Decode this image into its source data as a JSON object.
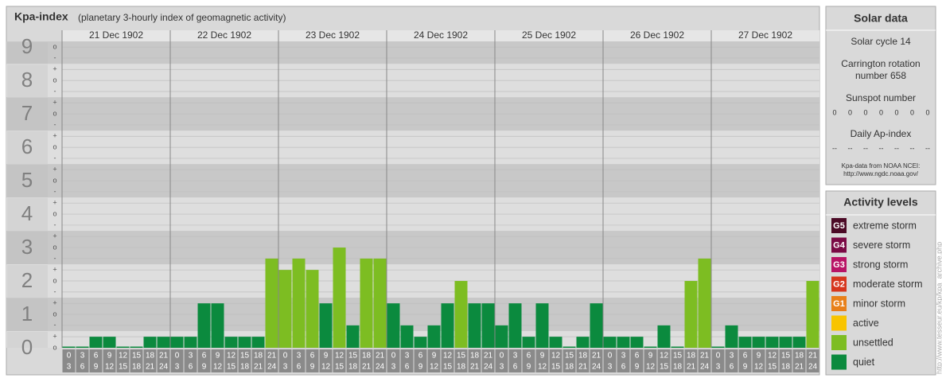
{
  "chart_data": {
    "type": "bar",
    "title": "Kpa-index",
    "subtitle": "(planetary 3-hourly index of geomagnetic activity)",
    "ylim": [
      0,
      9.17
    ],
    "yticks": [
      0,
      1,
      2,
      3,
      4,
      5,
      6,
      7,
      8,
      9
    ],
    "minor_yticks": [
      {
        "value": 0,
        "label": "o"
      },
      {
        "value": 0.33,
        "label": "+"
      },
      {
        "value": 0.67,
        "label": "-"
      },
      {
        "value": 1,
        "label": "o"
      },
      {
        "value": 1.33,
        "label": "+"
      },
      {
        "value": 1.67,
        "label": "-"
      },
      {
        "value": 2,
        "label": "o"
      },
      {
        "value": 2.33,
        "label": "+"
      },
      {
        "value": 2.67,
        "label": "-"
      },
      {
        "value": 3,
        "label": "o"
      },
      {
        "value": 3.33,
        "label": "+"
      },
      {
        "value": 3.67,
        "label": "-"
      },
      {
        "value": 4,
        "label": "o"
      },
      {
        "value": 4.33,
        "label": "+"
      },
      {
        "value": 4.67,
        "label": "-"
      },
      {
        "value": 5,
        "label": "o"
      },
      {
        "value": 5.33,
        "label": "+"
      },
      {
        "value": 5.67,
        "label": "-"
      },
      {
        "value": 6,
        "label": "o"
      },
      {
        "value": 6.33,
        "label": "+"
      },
      {
        "value": 6.67,
        "label": "-"
      },
      {
        "value": 7,
        "label": "o"
      },
      {
        "value": 7.33,
        "label": "+"
      },
      {
        "value": 7.67,
        "label": "-"
      },
      {
        "value": 8,
        "label": "o"
      },
      {
        "value": 8.33,
        "label": "+"
      },
      {
        "value": 8.67,
        "label": "-"
      },
      {
        "value": 9,
        "label": "o"
      }
    ],
    "hour_labels": [
      [
        "0",
        "3"
      ],
      [
        "3",
        "6"
      ],
      [
        "6",
        "9"
      ],
      [
        "9",
        "12"
      ],
      [
        "12",
        "15"
      ],
      [
        "15",
        "18"
      ],
      [
        "18",
        "21"
      ],
      [
        "21",
        "24"
      ]
    ],
    "days": [
      {
        "date": "21 Dec 1902",
        "values": [
          0,
          0,
          0.33,
          0.33,
          0,
          0,
          0.33,
          0.33
        ],
        "colors": [
          "#0b8a3e",
          "#0b8a3e",
          "#0b8a3e",
          "#0b8a3e",
          "#0b8a3e",
          "#0b8a3e",
          "#0b8a3e",
          "#0b8a3e"
        ]
      },
      {
        "date": "22 Dec 1902",
        "values": [
          0.33,
          0.33,
          1.33,
          1.33,
          0.33,
          0.33,
          0.33,
          2.67
        ],
        "colors": [
          "#0b8a3e",
          "#0b8a3e",
          "#0b8a3e",
          "#0b8a3e",
          "#0b8a3e",
          "#0b8a3e",
          "#0b8a3e",
          "#7dbd22"
        ]
      },
      {
        "date": "23 Dec 1902",
        "values": [
          2.33,
          2.67,
          2.33,
          1.33,
          3,
          0.67,
          2.67,
          2.67
        ],
        "colors": [
          "#7dbd22",
          "#7dbd22",
          "#7dbd22",
          "#0b8a3e",
          "#7dbd22",
          "#0b8a3e",
          "#7dbd22",
          "#7dbd22"
        ]
      },
      {
        "date": "24 Dec 1902",
        "values": [
          1.33,
          0.67,
          0.33,
          0.67,
          1.33,
          2,
          1.33,
          1.33
        ],
        "colors": [
          "#0b8a3e",
          "#0b8a3e",
          "#0b8a3e",
          "#0b8a3e",
          "#0b8a3e",
          "#7dbd22",
          "#0b8a3e",
          "#0b8a3e"
        ]
      },
      {
        "date": "25 Dec 1902",
        "values": [
          0.67,
          1.33,
          0.33,
          1.33,
          0.33,
          0,
          0.33,
          1.33
        ],
        "colors": [
          "#0b8a3e",
          "#0b8a3e",
          "#0b8a3e",
          "#0b8a3e",
          "#0b8a3e",
          "#0b8a3e",
          "#0b8a3e",
          "#0b8a3e"
        ]
      },
      {
        "date": "26 Dec 1902",
        "values": [
          0.33,
          0.33,
          0.33,
          0,
          0.67,
          0,
          2,
          2.67
        ],
        "colors": [
          "#0b8a3e",
          "#0b8a3e",
          "#0b8a3e",
          "#0b8a3e",
          "#0b8a3e",
          "#0b8a3e",
          "#7dbd22",
          "#7dbd22"
        ]
      },
      {
        "date": "27 Dec 1902",
        "values": [
          0,
          0.67,
          0.33,
          0.33,
          0.33,
          0.33,
          0.33,
          2
        ],
        "colors": [
          "#0b8a3e",
          "#0b8a3e",
          "#0b8a3e",
          "#0b8a3e",
          "#0b8a3e",
          "#0b8a3e",
          "#0b8a3e",
          "#7dbd22"
        ]
      }
    ]
  },
  "solar_data": {
    "title": "Solar data",
    "solar_cycle": "Solar cycle 14",
    "carrington_1": "Carrington rotation",
    "carrington_2": "number 658",
    "sunspot_title": "Sunspot number",
    "sunspot_values": [
      0,
      0,
      0,
      0,
      0,
      0,
      0
    ],
    "ap_title": "Daily Ap-index",
    "ap_values": [
      "--",
      "--",
      "--",
      "--",
      "--",
      "--",
      "--"
    ],
    "source_1": "Kpa-data from NOAA NCEI:",
    "source_2": "http://www.ngdc.noaa.gov/"
  },
  "activity_levels": {
    "title": "Activity levels",
    "levels": [
      {
        "badge": "G5",
        "name": "extreme storm",
        "color": "#4b0a26"
      },
      {
        "badge": "G4",
        "name": "severe storm",
        "color": "#7a0a45"
      },
      {
        "badge": "G3",
        "name": "strong storm",
        "color": "#b81466"
      },
      {
        "badge": "G2",
        "name": "moderate storm",
        "color": "#d6361d"
      },
      {
        "badge": "G1",
        "name": "minor storm",
        "color": "#e8801a"
      },
      {
        "name": "active",
        "color": "#f8c400"
      },
      {
        "name": "unsettled",
        "color": "#7dbd22"
      },
      {
        "name": "quiet",
        "color": "#0b8a3e"
      }
    ]
  },
  "credit": "http://www.tesseur.eu/kp/kpa_archive.php"
}
